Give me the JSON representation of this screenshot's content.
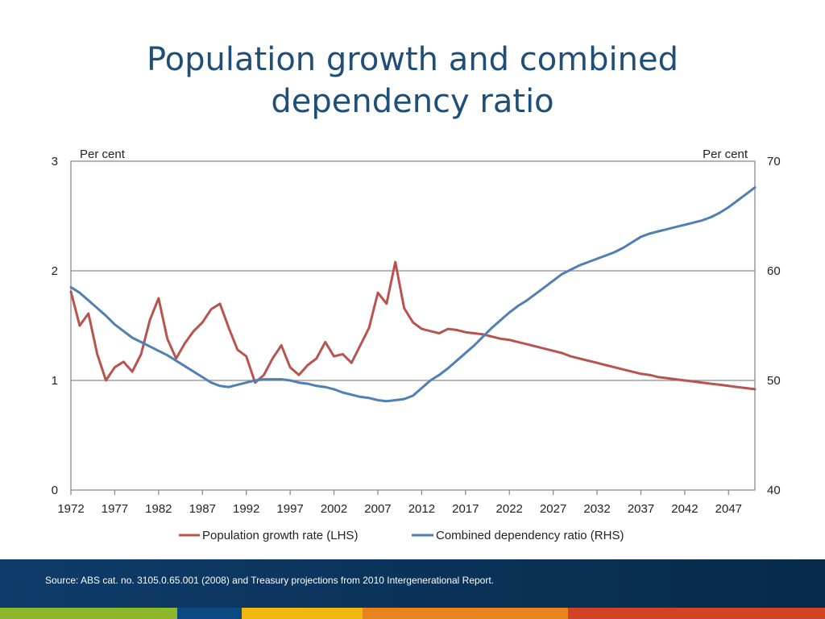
{
  "slide": {
    "title_line1": "Population growth and combined",
    "title_line2": "dependency ratio",
    "source": "Source: ABS cat. no. 3105.0.65.001 (2008) and Treasury projections from 2010 Intergenerational Report."
  },
  "colors": {
    "title": "#1f4e79",
    "population": "#b85450",
    "dependency": "#4f7fb3",
    "footer": "#0e3c6a",
    "stripes": [
      "#8db82c",
      "#0a4a80",
      "#f2b711",
      "#e8841e",
      "#d04325"
    ]
  },
  "chart_data": {
    "type": "line",
    "left_unit_label": "Per cent",
    "right_unit_label": "Per cent",
    "ylim_left": [
      0,
      3
    ],
    "ylim_right": [
      40,
      70
    ],
    "yticks_left": [
      0,
      1,
      2,
      3
    ],
    "yticks_right": [
      40,
      50,
      60,
      70
    ],
    "xlim": [
      1972,
      2050
    ],
    "xticks": [
      1972,
      1977,
      1982,
      1987,
      1992,
      1997,
      2002,
      2007,
      2012,
      2017,
      2022,
      2027,
      2032,
      2037,
      2042,
      2047
    ],
    "grid": "horizontal",
    "legend_position": "bottom",
    "series": [
      {
        "name": "Population growth rate (LHS)",
        "axis": "left",
        "x": [
          1972,
          1973,
          1974,
          1975,
          1976,
          1977,
          1978,
          1979,
          1980,
          1981,
          1982,
          1983,
          1984,
          1985,
          1986,
          1987,
          1988,
          1989,
          1990,
          1991,
          1992,
          1993,
          1994,
          1995,
          1996,
          1997,
          1998,
          1999,
          2000,
          2001,
          2002,
          2003,
          2004,
          2005,
          2006,
          2007,
          2008,
          2009,
          2010,
          2011,
          2012,
          2013,
          2014,
          2015,
          2016,
          2017,
          2018,
          2019,
          2020,
          2021,
          2022,
          2023,
          2024,
          2025,
          2026,
          2027,
          2028,
          2029,
          2030,
          2031,
          2032,
          2033,
          2034,
          2035,
          2036,
          2037,
          2038,
          2039,
          2040,
          2041,
          2042,
          2043,
          2044,
          2045,
          2046,
          2047,
          2048,
          2049,
          2050
        ],
        "values": [
          1.81,
          1.5,
          1.61,
          1.24,
          1.0,
          1.12,
          1.17,
          1.08,
          1.24,
          1.55,
          1.75,
          1.38,
          1.2,
          1.34,
          1.45,
          1.53,
          1.65,
          1.7,
          1.48,
          1.28,
          1.22,
          0.98,
          1.05,
          1.2,
          1.32,
          1.12,
          1.05,
          1.14,
          1.2,
          1.35,
          1.22,
          1.24,
          1.16,
          1.32,
          1.48,
          1.8,
          1.7,
          2.08,
          1.66,
          1.53,
          1.47,
          1.45,
          1.43,
          1.47,
          1.46,
          1.44,
          1.43,
          1.42,
          1.4,
          1.38,
          1.37,
          1.35,
          1.33,
          1.31,
          1.29,
          1.27,
          1.25,
          1.22,
          1.2,
          1.18,
          1.16,
          1.14,
          1.12,
          1.1,
          1.08,
          1.06,
          1.05,
          1.03,
          1.02,
          1.01,
          1.0,
          0.99,
          0.98,
          0.97,
          0.96,
          0.95,
          0.94,
          0.93,
          0.92
        ]
      },
      {
        "name": "Combined dependency ratio (RHS)",
        "axis": "right",
        "x": [
          1972,
          1973,
          1974,
          1975,
          1976,
          1977,
          1978,
          1979,
          1980,
          1981,
          1982,
          1983,
          1984,
          1985,
          1986,
          1987,
          1988,
          1989,
          1990,
          1991,
          1992,
          1993,
          1994,
          1995,
          1996,
          1997,
          1998,
          1999,
          2000,
          2001,
          2002,
          2003,
          2004,
          2005,
          2006,
          2007,
          2008,
          2009,
          2010,
          2011,
          2012,
          2013,
          2014,
          2015,
          2016,
          2017,
          2018,
          2019,
          2020,
          2021,
          2022,
          2023,
          2024,
          2025,
          2026,
          2027,
          2028,
          2029,
          2030,
          2031,
          2032,
          2033,
          2034,
          2035,
          2036,
          2037,
          2038,
          2039,
          2040,
          2041,
          2042,
          2043,
          2044,
          2045,
          2046,
          2047,
          2048,
          2049,
          2050
        ],
        "values": [
          58.5,
          58.0,
          57.3,
          56.6,
          55.9,
          55.1,
          54.5,
          53.9,
          53.5,
          53.1,
          52.7,
          52.3,
          51.8,
          51.3,
          50.8,
          50.3,
          49.8,
          49.5,
          49.4,
          49.6,
          49.8,
          50.0,
          50.1,
          50.1,
          50.1,
          50.0,
          49.8,
          49.7,
          49.5,
          49.4,
          49.2,
          48.9,
          48.7,
          48.5,
          48.4,
          48.2,
          48.1,
          48.2,
          48.3,
          48.6,
          49.3,
          50.0,
          50.5,
          51.1,
          51.8,
          52.5,
          53.2,
          54.0,
          54.8,
          55.5,
          56.2,
          56.8,
          57.3,
          57.9,
          58.5,
          59.1,
          59.7,
          60.1,
          60.5,
          60.8,
          61.1,
          61.4,
          61.7,
          62.1,
          62.6,
          63.1,
          63.4,
          63.6,
          63.8,
          64.0,
          64.2,
          64.4,
          64.6,
          64.9,
          65.3,
          65.8,
          66.4,
          67.0,
          67.6
        ]
      }
    ]
  }
}
